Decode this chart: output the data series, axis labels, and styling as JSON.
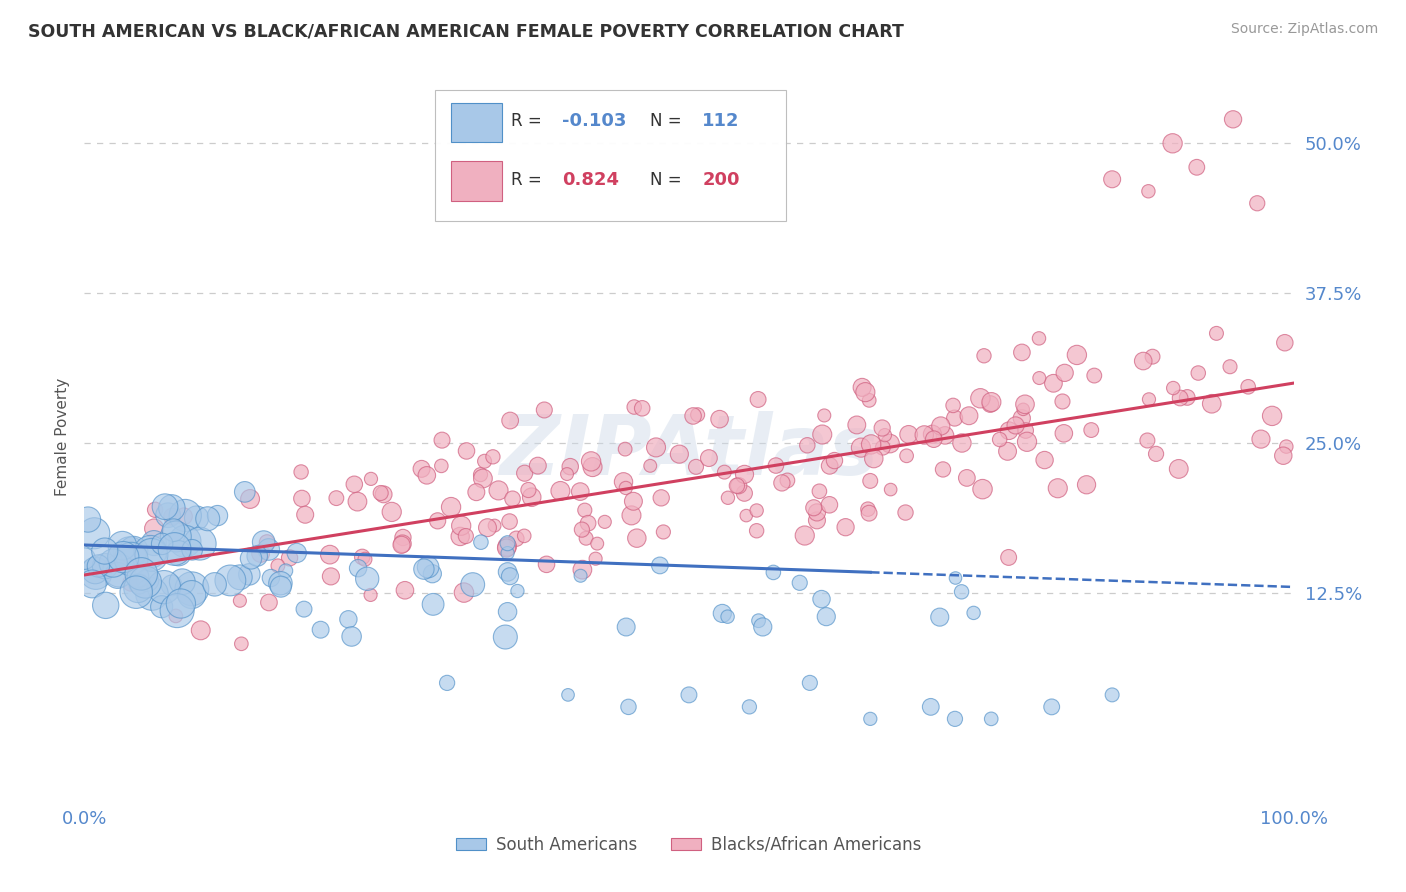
{
  "title": "SOUTH AMERICAN VS BLACK/AFRICAN AMERICAN FEMALE POVERTY CORRELATION CHART",
  "source": "Source: ZipAtlas.com",
  "ylabel": "Female Poverty",
  "xlim": [
    0,
    100
  ],
  "ylim": [
    -5,
    56
  ],
  "yticks": [
    12.5,
    25.0,
    37.5,
    50.0
  ],
  "ytick_labels": [
    "12.5%",
    "25.0%",
    "37.5%",
    "50.0%"
  ],
  "xtick_labels": [
    "0.0%",
    "100.0%"
  ],
  "legend_r1": "-0.103",
  "legend_n1": "112",
  "legend_r2": "0.824",
  "legend_n2": "200",
  "legend_label1": "South Americans",
  "legend_label2": "Blacks/African Americans",
  "blue_fill": "#a8c8e8",
  "blue_edge": "#5090c8",
  "pink_fill": "#f0b0c0",
  "pink_edge": "#d06080",
  "blue_line_color": "#4070c0",
  "pink_line_color": "#d04060",
  "tick_color": "#5588cc",
  "grid_color": "#cccccc",
  "watermark": "ZIPAtlas",
  "background_color": "#ffffff",
  "blue_reg_x0": 0,
  "blue_reg_x1": 100,
  "blue_reg_y0": 16.5,
  "blue_reg_y1": 13.0,
  "blue_solid_end_x": 65,
  "pink_reg_y0": 14.0,
  "pink_reg_y1": 30.0
}
